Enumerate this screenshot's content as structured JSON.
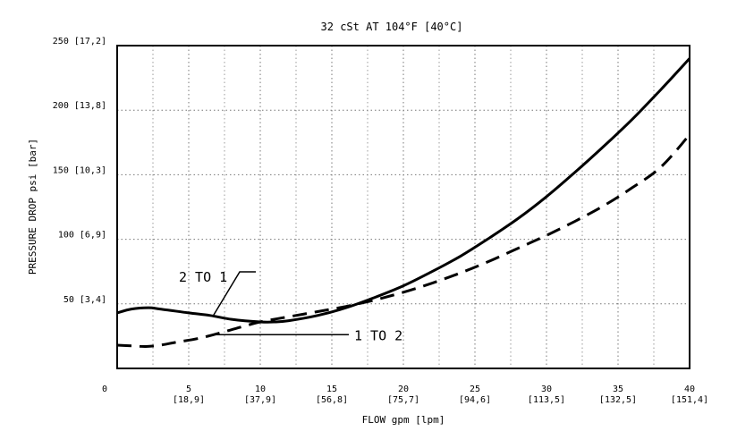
{
  "chart_data": {
    "type": "line",
    "title": "32 cSt AT 104°F [40°C]",
    "xlabel": "FLOW gpm [lpm]",
    "ylabel": "PRESSURE DROP psi [bar]",
    "xlim": [
      0,
      40
    ],
    "ylim": [
      0,
      250
    ],
    "grid": true,
    "x_ticks": [
      {
        "value": 0,
        "label": "0",
        "sub": ""
      },
      {
        "value": 5,
        "label": "5",
        "sub": "[18,9]"
      },
      {
        "value": 10,
        "label": "10",
        "sub": "[37,9]"
      },
      {
        "value": 15,
        "label": "15",
        "sub": "[56,8]"
      },
      {
        "value": 20,
        "label": "20",
        "sub": "[75,7]"
      },
      {
        "value": 25,
        "label": "25",
        "sub": "[94,6]"
      },
      {
        "value": 30,
        "label": "30",
        "sub": "[113,5]"
      },
      {
        "value": 35,
        "label": "35",
        "sub": "[132,5]"
      },
      {
        "value": 40,
        "label": "40",
        "sub": "[151,4]"
      }
    ],
    "y_ticks": [
      {
        "value": 50,
        "label": "50 [3,4]"
      },
      {
        "value": 100,
        "label": "100 [6,9]"
      },
      {
        "value": 150,
        "label": "150 [10,3]"
      },
      {
        "value": 200,
        "label": "200 [13,8]"
      },
      {
        "value": 250,
        "label": "250 [17,2]"
      }
    ],
    "series": [
      {
        "name": "2 TO 1",
        "style": "solid",
        "x": [
          0,
          1,
          2.2,
          3,
          5,
          6.5,
          8,
          10,
          11,
          12,
          14,
          16,
          18,
          20,
          22,
          24,
          26,
          28,
          30,
          32,
          34,
          36,
          38,
          40
        ],
        "y": [
          43,
          46,
          47,
          46,
          43,
          41,
          38,
          36,
          36,
          37,
          41,
          47,
          55,
          64,
          75,
          87,
          101,
          116,
          133,
          152,
          172,
          193,
          216,
          240
        ]
      },
      {
        "name": "1 TO 2",
        "style": "dashed",
        "x": [
          0,
          1,
          2,
          3,
          4,
          6,
          8,
          10,
          12,
          14,
          16,
          18,
          20,
          22,
          24,
          26,
          28,
          30,
          32,
          34,
          36,
          38,
          40
        ],
        "y": [
          18,
          17.5,
          17,
          18,
          20,
          24,
          30,
          36,
          40,
          44,
          48,
          53,
          59,
          66,
          74,
          83,
          93,
          103,
          114,
          126,
          140,
          156,
          181
        ]
      }
    ],
    "annotations": [
      {
        "text": "2 TO 1",
        "series": 0,
        "at_x": 6.7
      },
      {
        "text": "1 TO 2",
        "series": 1,
        "at_x": 6.7
      }
    ]
  }
}
